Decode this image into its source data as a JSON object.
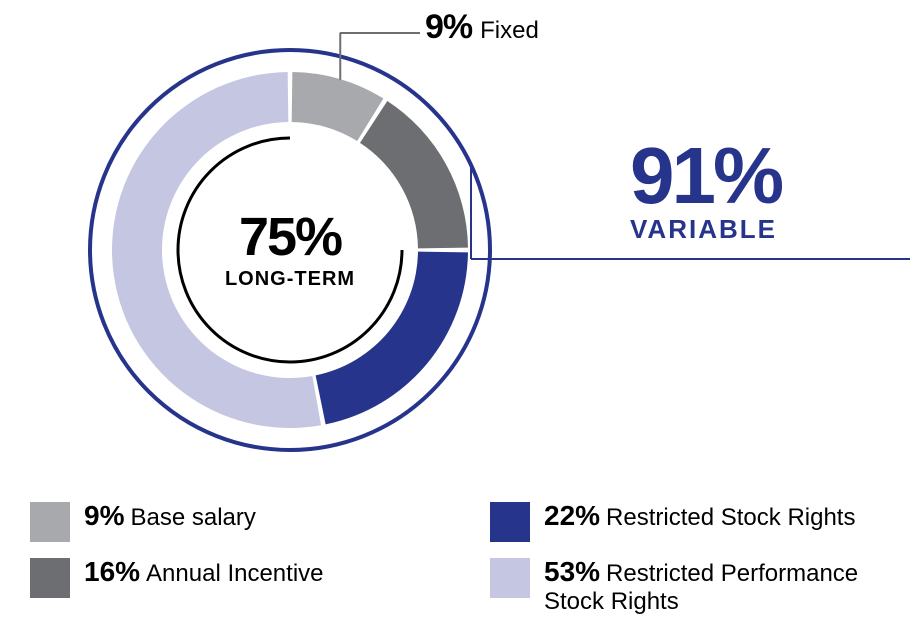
{
  "chart": {
    "type": "donut",
    "background_color": "#ffffff",
    "outer_ring_stroke": "#27348b",
    "outer_ring_stroke_width": 4,
    "outer_radius": 200,
    "ring_outer": 178,
    "ring_inner": 128,
    "segment_gap_deg": 1.5,
    "segments": [
      {
        "name": "base_salary",
        "value": 9,
        "color": "#a7a9ac"
      },
      {
        "name": "annual_incentive",
        "value": 16,
        "color": "#6d6e71"
      },
      {
        "name": "restricted_stock_rights",
        "value": 22,
        "color": "#27348b"
      },
      {
        "name": "restricted_performance_stock_rights",
        "value": 53,
        "color": "#c5c7e2"
      }
    ],
    "inner_arc": {
      "stroke": "#000000",
      "stroke_width": 3,
      "radius": 112,
      "start_deg": 90,
      "extent_deg": 270,
      "label_pct": "75%",
      "label_text": "LONG-TERM",
      "pct_fontsize": 54,
      "label_fontsize": 20
    },
    "callouts": {
      "fixed": {
        "pct": "9%",
        "label": "Fixed",
        "pct_fontsize": 34,
        "label_fontsize": 24,
        "color": "#000000"
      },
      "variable": {
        "pct": "91%",
        "label": "VARIABLE",
        "pct_fontsize": 80,
        "label_fontsize": 26,
        "color": "#27348b",
        "underline_width": 280
      }
    }
  },
  "legend": {
    "swatch_size": 40,
    "pct_fontsize": 28,
    "label_fontsize": 24,
    "items": [
      {
        "pct": "9%",
        "label": "Base salary",
        "color": "#a7a9ac"
      },
      {
        "pct": "16%",
        "label": "Annual Incentive",
        "color": "#6d6e71"
      },
      {
        "pct": "22%",
        "label": "Restricted Stock Rights",
        "color": "#27348b"
      },
      {
        "pct": "53%",
        "label": "Restricted Performance Stock Rights",
        "color": "#c5c7e2"
      }
    ]
  }
}
